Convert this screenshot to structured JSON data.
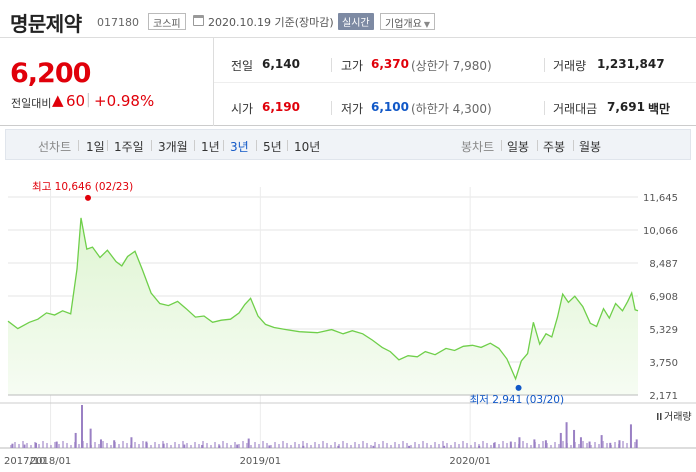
{
  "header": {
    "stock_name": "명문제약",
    "stock_code": "017180",
    "market": "코스피",
    "date_text": "2020.10.19  기준(장마감)",
    "realtime_label": "실시간",
    "company_label": "기업개요"
  },
  "quote": {
    "price": "6,200",
    "change_label": "전일대비",
    "change_arrow": "▲",
    "change_value": "60",
    "change_pct": "+0.98%",
    "prev_close_label": "전일",
    "prev_close": "6,140",
    "high_label": "고가",
    "high": "6,370",
    "upper_limit": "(상한가 7,980)",
    "volume_label": "거래량",
    "volume": "1,231,847",
    "open_label": "시가",
    "open": "6,190",
    "low_label": "저가",
    "low": "6,100",
    "lower_limit": "(하한가 4,300)",
    "amount_label": "거래대금",
    "amount": "7,691",
    "amount_unit": "백만"
  },
  "tabs": {
    "line_chart_label": "선차트",
    "periods": [
      "1일",
      "1주일",
      "3개월",
      "1년",
      "3년",
      "5년",
      "10년"
    ],
    "active_period": "3년",
    "candle_chart_label": "봉차트",
    "candles": [
      "일봉",
      "주봉",
      "월봉"
    ]
  },
  "colors": {
    "up": "#e0000a",
    "down": "#1158c7",
    "line": "#6fcf4a",
    "fill": "#dff5d2",
    "volume": "#9a80c4"
  },
  "chart_data": {
    "type": "area",
    "y_ticks": [
      "11,645",
      "10,066",
      "8,487",
      "6,908",
      "5,329",
      "3,750",
      "2,171"
    ],
    "x_ticks": [
      "2017/10",
      "2018/01",
      "2019/01",
      "2020/01"
    ],
    "ylim": [
      2171,
      11645
    ],
    "max_label": "최고 10,646 (02/23)",
    "min_label": "최저 2,941 (03/20)",
    "volume_label": "거래량",
    "x_start": "2017-10-19",
    "x_end": "2020-10-19",
    "price": [
      [
        "2017-10-19",
        5700
      ],
      [
        "2017-11-05",
        5350
      ],
      [
        "2017-11-25",
        5650
      ],
      [
        "2017-12-10",
        5800
      ],
      [
        "2017-12-25",
        6100
      ],
      [
        "2018-01-08",
        6000
      ],
      [
        "2018-01-22",
        6200
      ],
      [
        "2018-02-05",
        6050
      ],
      [
        "2018-02-16",
        8200
      ],
      [
        "2018-02-23",
        10646
      ],
      [
        "2018-03-05",
        9150
      ],
      [
        "2018-03-15",
        9250
      ],
      [
        "2018-03-28",
        8750
      ],
      [
        "2018-04-10",
        9100
      ],
      [
        "2018-04-25",
        8550
      ],
      [
        "2018-05-05",
        8350
      ],
      [
        "2018-05-15",
        8800
      ],
      [
        "2018-05-28",
        9050
      ],
      [
        "2018-06-10",
        8150
      ],
      [
        "2018-06-25",
        7050
      ],
      [
        "2018-07-10",
        6550
      ],
      [
        "2018-07-25",
        6450
      ],
      [
        "2018-08-10",
        6650
      ],
      [
        "2018-08-25",
        6300
      ],
      [
        "2018-09-10",
        5900
      ],
      [
        "2018-09-25",
        5950
      ],
      [
        "2018-10-10",
        5650
      ],
      [
        "2018-10-25",
        5750
      ],
      [
        "2018-11-10",
        5800
      ],
      [
        "2018-11-25",
        6100
      ],
      [
        "2018-12-05",
        6500
      ],
      [
        "2018-12-15",
        6800
      ],
      [
        "2018-12-28",
        5950
      ],
      [
        "2019-01-10",
        5550
      ],
      [
        "2019-01-25",
        5400
      ],
      [
        "2019-02-15",
        5300
      ],
      [
        "2019-03-10",
        5200
      ],
      [
        "2019-04-10",
        5150
      ],
      [
        "2019-05-05",
        5300
      ],
      [
        "2019-05-25",
        5100
      ],
      [
        "2019-06-10",
        5250
      ],
      [
        "2019-06-28",
        5100
      ],
      [
        "2019-07-15",
        4800
      ],
      [
        "2019-08-01",
        4450
      ],
      [
        "2019-08-15",
        4250
      ],
      [
        "2019-08-30",
        3850
      ],
      [
        "2019-09-15",
        4050
      ],
      [
        "2019-10-01",
        4000
      ],
      [
        "2019-10-15",
        4250
      ],
      [
        "2019-11-01",
        4100
      ],
      [
        "2019-11-20",
        4400
      ],
      [
        "2019-12-05",
        4300
      ],
      [
        "2019-12-20",
        4500
      ],
      [
        "2020-01-05",
        4550
      ],
      [
        "2020-01-20",
        4450
      ],
      [
        "2020-02-05",
        4650
      ],
      [
        "2020-02-20",
        4400
      ],
      [
        "2020-03-05",
        3900
      ],
      [
        "2020-03-20",
        2941
      ],
      [
        "2020-03-30",
        3800
      ],
      [
        "2020-04-10",
        4150
      ],
      [
        "2020-04-20",
        5650
      ],
      [
        "2020-05-01",
        4600
      ],
      [
        "2020-05-12",
        5100
      ],
      [
        "2020-05-22",
        4950
      ],
      [
        "2020-06-01",
        5900
      ],
      [
        "2020-06-10",
        7000
      ],
      [
        "2020-06-20",
        6600
      ],
      [
        "2020-07-01",
        6900
      ],
      [
        "2020-07-15",
        6400
      ],
      [
        "2020-07-28",
        5600
      ],
      [
        "2020-08-08",
        5450
      ],
      [
        "2020-08-20",
        6300
      ],
      [
        "2020-08-30",
        5850
      ],
      [
        "2020-09-10",
        6550
      ],
      [
        "2020-09-22",
        6200
      ],
      [
        "2020-10-01",
        6650
      ],
      [
        "2020-10-08",
        7050
      ],
      [
        "2020-10-14",
        6250
      ],
      [
        "2020-10-19",
        6200
      ]
    ],
    "volume_relative": [
      [
        "2017-10-25",
        0.1
      ],
      [
        "2017-11-15",
        0.08
      ],
      [
        "2017-12-05",
        0.12
      ],
      [
        "2018-01-10",
        0.15
      ],
      [
        "2018-02-12",
        0.35
      ],
      [
        "2018-02-23",
        1.0
      ],
      [
        "2018-03-10",
        0.45
      ],
      [
        "2018-03-28",
        0.2
      ],
      [
        "2018-04-20",
        0.18
      ],
      [
        "2018-05-20",
        0.25
      ],
      [
        "2018-06-15",
        0.15
      ],
      [
        "2018-07-15",
        0.1
      ],
      [
        "2018-08-20",
        0.08
      ],
      [
        "2018-09-20",
        0.07
      ],
      [
        "2018-10-20",
        0.06
      ],
      [
        "2018-11-20",
        0.08
      ],
      [
        "2018-12-10",
        0.22
      ],
      [
        "2019-01-15",
        0.06
      ],
      [
        "2019-03-15",
        0.05
      ],
      [
        "2019-05-15",
        0.05
      ],
      [
        "2019-07-15",
        0.05
      ],
      [
        "2019-09-15",
        0.05
      ],
      [
        "2019-11-15",
        0.05
      ],
      [
        "2020-01-15",
        0.05
      ],
      [
        "2020-02-10",
        0.12
      ],
      [
        "2020-03-10",
        0.15
      ],
      [
        "2020-03-25",
        0.25
      ],
      [
        "2020-04-20",
        0.2
      ],
      [
        "2020-05-10",
        0.18
      ],
      [
        "2020-06-05",
        0.35
      ],
      [
        "2020-06-15",
        0.6
      ],
      [
        "2020-06-28",
        0.42
      ],
      [
        "2020-07-10",
        0.25
      ],
      [
        "2020-07-25",
        0.15
      ],
      [
        "2020-08-15",
        0.3
      ],
      [
        "2020-08-30",
        0.12
      ],
      [
        "2020-09-15",
        0.18
      ],
      [
        "2020-10-05",
        0.55
      ],
      [
        "2020-10-15",
        0.2
      ]
    ]
  }
}
